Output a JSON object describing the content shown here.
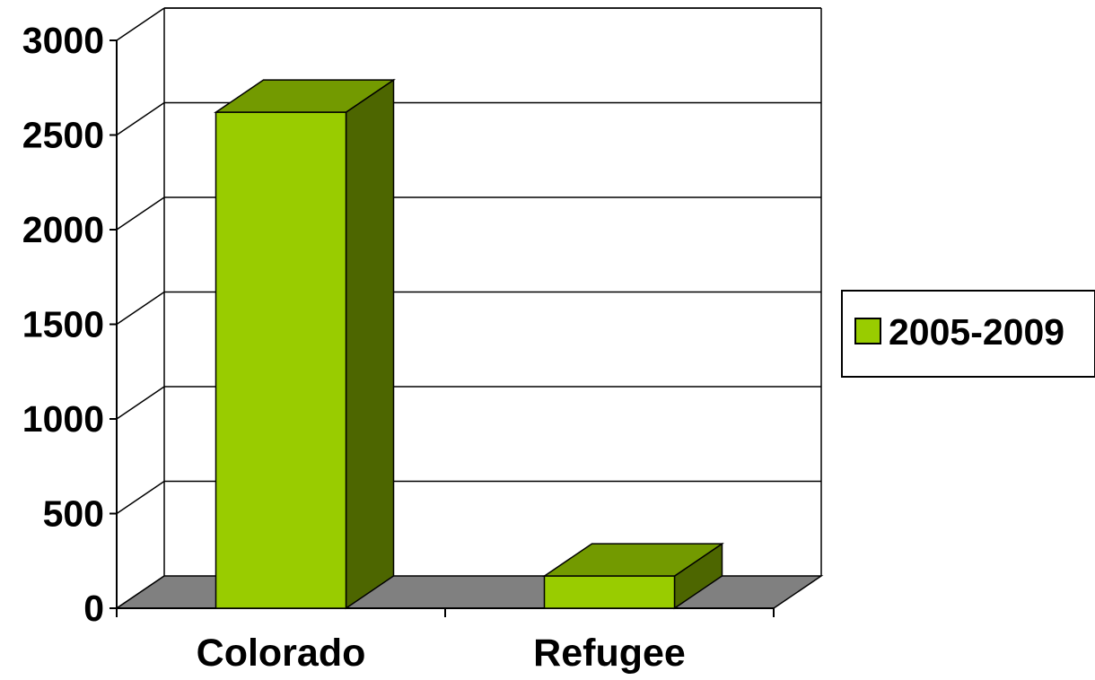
{
  "chart_data": {
    "type": "bar",
    "style": "3d",
    "categories": [
      "Colorado",
      "Refugee"
    ],
    "series": [
      {
        "name": "2005-2009",
        "values": [
          2620,
          170
        ]
      }
    ],
    "title": "",
    "xlabel": "",
    "ylabel": "",
    "ylim": [
      0,
      3000
    ],
    "yticks": [
      "0",
      "500",
      "1000",
      "1500",
      "2000",
      "2500",
      "3000"
    ],
    "grid": true,
    "legend": "right",
    "colors": {
      "bar_front": "#99cc00",
      "bar_top": "#739a00",
      "bar_side": "#4d6600",
      "floor": "#808080",
      "grid": "#000000"
    }
  }
}
